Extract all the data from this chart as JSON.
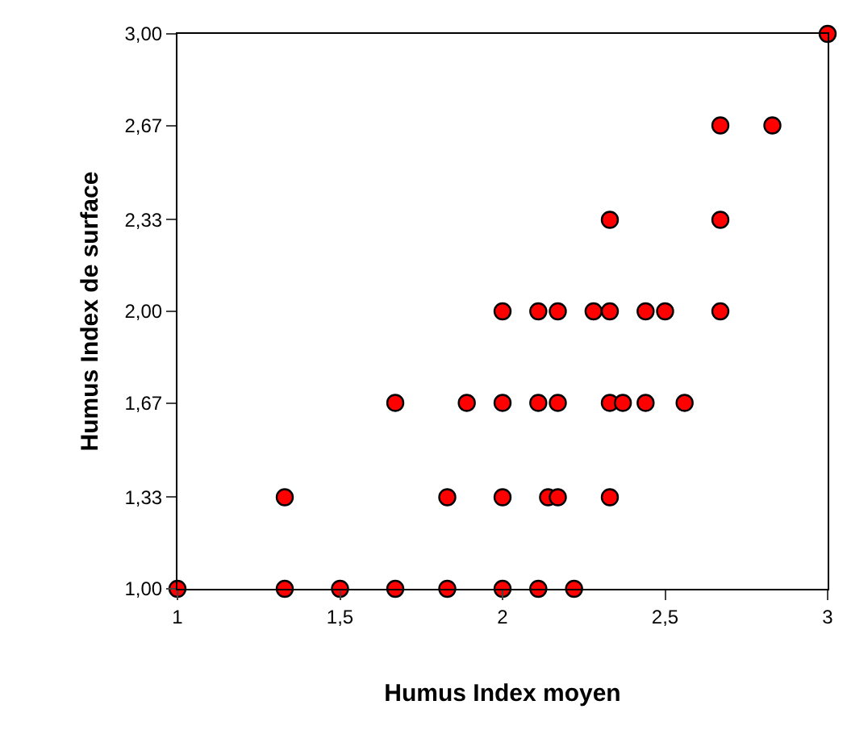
{
  "chart_data": {
    "type": "scatter",
    "xlabel": "Humus Index moyen",
    "ylabel": "Humus Index de surface",
    "series": [
      {
        "color": "#ff0000",
        "x": [
          1,
          1.33,
          1.5,
          1.67,
          1.83,
          2,
          2.11,
          2.22,
          1.33,
          1.83,
          2,
          2.14,
          2.17,
          2.33,
          1.67,
          1.89,
          2,
          2.11,
          2.17,
          2.33,
          2.37,
          2.44,
          2.56,
          2,
          2.11,
          2.17,
          2.28,
          2.33,
          2.44,
          2.5,
          2.67,
          2.33,
          2.67,
          2.67,
          2.83,
          3
        ],
        "values": [
          1,
          1,
          1,
          1,
          1,
          1,
          1,
          1,
          1.33,
          1.33,
          1.33,
          1.33,
          1.33,
          1.33,
          1.67,
          1.67,
          1.67,
          1.67,
          1.67,
          1.67,
          1.67,
          1.67,
          1.67,
          2,
          2,
          2,
          2,
          2,
          2,
          2,
          2,
          2.33,
          2.33,
          2.67,
          2.67,
          3
        ]
      }
    ],
    "marker": "circle",
    "xlim": [
      1,
      3
    ],
    "xticks": [
      1,
      {
        "value": 1.5,
        "label": "1,5"
      },
      2,
      {
        "value": 2.5,
        "label": "2,5"
      },
      3
    ],
    "ylim": [
      1,
      3
    ],
    "yticks": [
      {
        "value": 1,
        "label": "1,00"
      },
      {
        "value": 1.33,
        "label": "1,33"
      },
      {
        "value": 1.67,
        "label": "1,67"
      },
      {
        "value": 2,
        "label": "2,00"
      },
      {
        "value": 2.33,
        "label": "2,33"
      },
      {
        "value": 2.67,
        "label": "2,67"
      },
      {
        "value": 3,
        "label": "3,00"
      }
    ]
  }
}
